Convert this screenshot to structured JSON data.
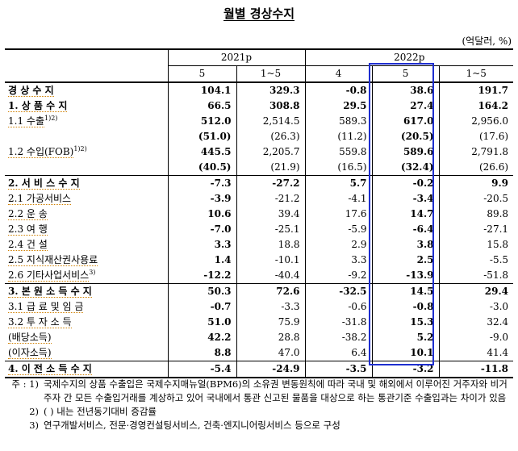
{
  "title": "월별 경상수지",
  "unit": "(억달러, %)",
  "header": {
    "group_2021": "2021p",
    "group_2022": "2022p",
    "cols": [
      "5",
      "1~5",
      "4",
      "5",
      "1~5"
    ]
  },
  "rows": [
    {
      "label": "경 상 수 지",
      "bold": true,
      "level": 0,
      "values": [
        "104.1",
        "329.3",
        "-0.8",
        "38.6",
        "191.7"
      ]
    },
    {
      "label": "1. 상 품 수 지",
      "bold": true,
      "level": 1,
      "values": [
        "66.5",
        "308.8",
        "29.5",
        "27.4",
        "164.2"
      ]
    },
    {
      "label": "1.1  수출",
      "sup": "1)2)",
      "bold": true,
      "level": 2,
      "values": [
        "512.0",
        "2,514.5",
        "589.3",
        "617.0",
        "2,956.0"
      ]
    },
    {
      "label": "",
      "bold": true,
      "level": 2,
      "values": [
        "(51.0)",
        "(26.3)",
        "(11.2)",
        "(20.5)",
        "(17.6)"
      ]
    },
    {
      "label": "1.2  수입(FOB)",
      "sup": "1)2)",
      "bold": true,
      "level": 2,
      "values": [
        "445.5",
        "2,205.7",
        "559.8",
        "589.6",
        "2,791.8"
      ]
    },
    {
      "label": "",
      "bold": true,
      "level": 2,
      "values": [
        "(40.5)",
        "(21.9)",
        "(16.5)",
        "(32.4)",
        "(26.6)"
      ]
    },
    {
      "label": "2. 서 비 스 수 지",
      "bold": true,
      "level": 1,
      "values": [
        "-7.3",
        "-27.2",
        "5.7",
        "-0.2",
        "9.9"
      ]
    },
    {
      "label": "2.1  가공서비스",
      "bold": true,
      "level": 2,
      "values": [
        "-3.9",
        "-21.2",
        "-4.1",
        "-3.4",
        "-20.5"
      ]
    },
    {
      "label": "2.2  운        송",
      "bold": true,
      "level": 2,
      "values": [
        "10.6",
        "39.4",
        "17.6",
        "14.7",
        "89.8"
      ]
    },
    {
      "label": "2.3  여        행",
      "bold": true,
      "level": 2,
      "values": [
        "-7.0",
        "-25.1",
        "-5.9",
        "-6.4",
        "-27.1"
      ]
    },
    {
      "label": "2.4  건        설",
      "bold": true,
      "level": 2,
      "values": [
        "3.3",
        "18.8",
        "2.9",
        "3.8",
        "15.8"
      ]
    },
    {
      "label": "2.5  지식재산권사용료",
      "bold": true,
      "level": 2,
      "values": [
        "1.4",
        "-10.1",
        "3.3",
        "2.5",
        "-5.5"
      ]
    },
    {
      "label": "2.6  기타사업서비스",
      "sup": "3)",
      "bold": true,
      "level": 2,
      "values": [
        "-12.2",
        "-40.4",
        "-9.2",
        "-13.9",
        "-51.8"
      ]
    },
    {
      "label": "3. 본 원 소 득 수 지",
      "bold": true,
      "level": 1,
      "values": [
        "50.3",
        "72.6",
        "-32.5",
        "14.5",
        "29.4"
      ]
    },
    {
      "label": "3.1  급 료 및 임 금",
      "bold": true,
      "level": 2,
      "values": [
        "-0.7",
        "-3.3",
        "-0.6",
        "-0.8",
        "-3.0"
      ]
    },
    {
      "label": "3.2  투   자   소   득",
      "bold": true,
      "level": 2,
      "values": [
        "51.0",
        "75.9",
        "-31.8",
        "15.3",
        "32.4"
      ]
    },
    {
      "label": "(배당소득)",
      "bold": true,
      "level": 3,
      "values": [
        "42.2",
        "28.8",
        "-38.2",
        "5.2",
        "-9.0"
      ]
    },
    {
      "label": "(이자소득)",
      "bold": true,
      "level": 3,
      "values": [
        "8.8",
        "47.0",
        "6.4",
        "10.1",
        "41.4"
      ]
    },
    {
      "label": "4. 이 전 소 득 수 지",
      "bold": true,
      "level": 1,
      "values": [
        "-5.4",
        "-24.9",
        "-3.5",
        "-3.2",
        "-11.8"
      ]
    }
  ],
  "notes": [
    {
      "key": "주 : 1)",
      "text": "국제수지의 상품 수출입은 국제수지매뉴얼(BPM6)의 소유권 변동원칙에 따라 국내 및 해외에서 이루어진 거주자와 비거주자 간 모든 수출입거래를 계상하고 있어 국내에서 통관 신고된 물품을 대상으로 하는 통관기준 수출입과는 차이가 있음"
    },
    {
      "key": "2)",
      "text": "(  ) 내는 전년동기대비 증감률"
    },
    {
      "key": "3)",
      "text": "연구개발서비스, 전문·경영컨설팅서비스, 건축·엔지니어링서비스 등으로 구성"
    }
  ]
}
